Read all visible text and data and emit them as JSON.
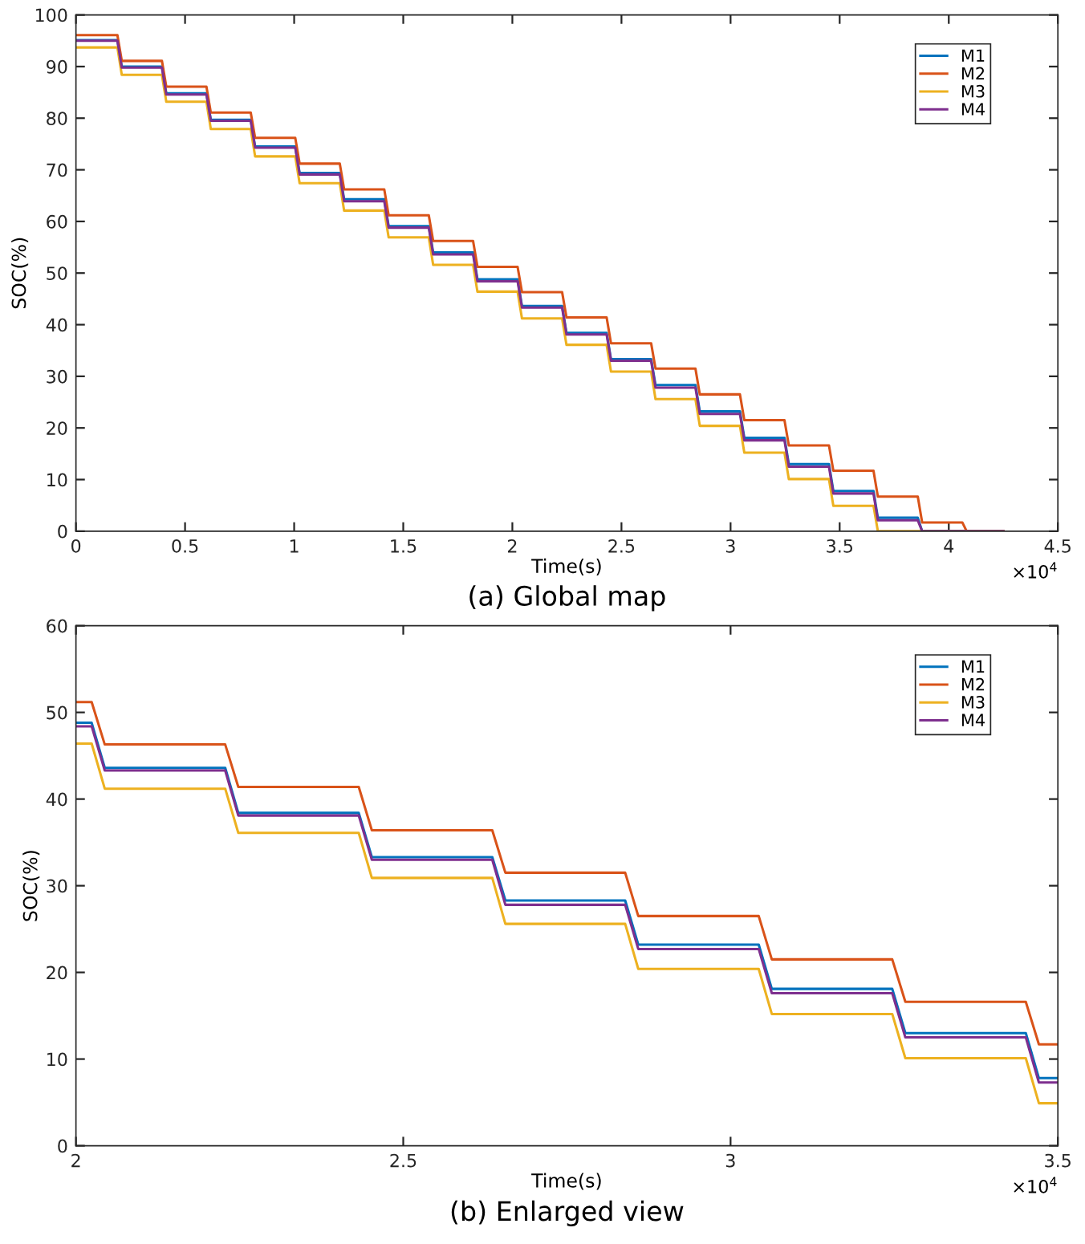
{
  "chart_data": [
    {
      "type": "line",
      "title": "(a) Global map",
      "xlabel": "Time(s)",
      "ylabel": "SOC(%)",
      "annotations": [
        "×10$^{4}$"
      ],
      "xlim": [
        0,
        4.5
      ],
      "ylim": [
        0,
        100
      ],
      "xticks": [
        0,
        0.5,
        1,
        1.5,
        2,
        2.5,
        3,
        3.5,
        4,
        4.5
      ],
      "yticks": [
        0,
        10,
        20,
        30,
        40,
        50,
        60,
        70,
        80,
        90,
        100
      ],
      "grid": false,
      "legend": "top right",
      "line_style": "solid",
      "marker": "none",
      "series": [
        {
          "name": "M1",
          "color": "#0072bd",
          "x": [
            0,
            0.19,
            0.21,
            0.394,
            0.414,
            0.598,
            0.618,
            0.801,
            0.821,
            1.005,
            1.025,
            1.209,
            1.229,
            1.413,
            1.433,
            1.617,
            1.637,
            1.82,
            1.84,
            2.024,
            2.044,
            2.228,
            2.248,
            2.432,
            2.452,
            2.636,
            2.656,
            2.839,
            2.859,
            3.043,
            3.063,
            3.247,
            3.267,
            3.451,
            3.471,
            3.655,
            3.675,
            3.858,
            3.878,
            4.25
          ],
          "values": [
            95.1,
            95.1,
            90.0,
            90.0,
            84.8,
            84.8,
            79.7,
            79.7,
            74.5,
            74.5,
            69.4,
            69.4,
            64.3,
            64.3,
            59.1,
            59.1,
            54.0,
            54.0,
            48.8,
            48.8,
            43.6,
            43.6,
            38.4,
            38.4,
            33.3,
            33.3,
            28.3,
            28.3,
            23.2,
            23.2,
            18.1,
            18.1,
            13.0,
            13.0,
            7.8,
            7.8,
            2.6,
            2.6,
            0,
            0
          ]
        },
        {
          "name": "M2",
          "color": "#d95319",
          "x": [
            0,
            0.19,
            0.21,
            0.394,
            0.414,
            0.598,
            0.618,
            0.801,
            0.821,
            1.005,
            1.025,
            1.209,
            1.229,
            1.413,
            1.433,
            1.617,
            1.637,
            1.82,
            1.84,
            2.024,
            2.044,
            2.228,
            2.248,
            2.432,
            2.452,
            2.636,
            2.656,
            2.839,
            2.859,
            3.043,
            3.063,
            3.247,
            3.267,
            3.451,
            3.471,
            3.655,
            3.675,
            3.858,
            3.878,
            4.062,
            4.082,
            4.25
          ],
          "values": [
            96.1,
            96.1,
            91.1,
            91.1,
            86.1,
            86.1,
            81.1,
            81.1,
            76.2,
            76.2,
            71.2,
            71.2,
            66.2,
            66.2,
            61.2,
            61.2,
            56.2,
            56.2,
            51.2,
            51.2,
            46.3,
            46.3,
            41.4,
            41.4,
            36.4,
            36.4,
            31.5,
            31.5,
            26.5,
            26.5,
            21.5,
            21.5,
            16.6,
            16.6,
            11.7,
            11.7,
            6.7,
            6.7,
            1.7,
            1.7,
            0,
            0
          ]
        },
        {
          "name": "M3",
          "color": "#edb120",
          "x": [
            0,
            0.19,
            0.21,
            0.394,
            0.414,
            0.598,
            0.618,
            0.801,
            0.821,
            1.005,
            1.025,
            1.209,
            1.229,
            1.413,
            1.433,
            1.617,
            1.637,
            1.82,
            1.84,
            2.024,
            2.044,
            2.228,
            2.248,
            2.432,
            2.452,
            2.636,
            2.656,
            2.839,
            2.859,
            3.043,
            3.063,
            3.247,
            3.267,
            3.451,
            3.471,
            3.655,
            3.675,
            4.25
          ],
          "values": [
            93.7,
            93.7,
            88.4,
            88.4,
            83.2,
            83.2,
            77.9,
            77.9,
            72.6,
            72.6,
            67.4,
            67.4,
            62.1,
            62.1,
            56.9,
            56.9,
            51.6,
            51.6,
            46.4,
            46.4,
            41.2,
            41.2,
            36.1,
            36.1,
            30.9,
            30.9,
            25.6,
            25.6,
            20.4,
            20.4,
            15.2,
            15.2,
            10.1,
            10.1,
            4.9,
            4.9,
            0,
            0
          ]
        },
        {
          "name": "M4",
          "color": "#7e2f8e",
          "x": [
            0,
            0.19,
            0.21,
            0.394,
            0.414,
            0.598,
            0.618,
            0.801,
            0.821,
            1.005,
            1.025,
            1.209,
            1.229,
            1.413,
            1.433,
            1.617,
            1.637,
            1.82,
            1.84,
            2.024,
            2.044,
            2.228,
            2.248,
            2.432,
            2.452,
            2.636,
            2.656,
            2.839,
            2.859,
            3.043,
            3.063,
            3.247,
            3.267,
            3.451,
            3.471,
            3.655,
            3.675,
            3.858,
            3.878,
            4.25
          ],
          "values": [
            95.0,
            95.0,
            89.8,
            89.8,
            84.6,
            84.6,
            79.5,
            79.5,
            74.3,
            74.3,
            69.1,
            69.1,
            63.9,
            63.9,
            58.8,
            58.8,
            53.6,
            53.6,
            48.4,
            48.4,
            43.3,
            43.3,
            38.1,
            38.1,
            33.0,
            33.0,
            27.8,
            27.8,
            22.7,
            22.7,
            17.6,
            17.6,
            12.5,
            12.5,
            7.3,
            7.3,
            2.1,
            2.1,
            0,
            0
          ]
        }
      ]
    },
    {
      "type": "line",
      "title": "(b) Enlarged view",
      "xlabel": "Time(s)",
      "ylabel": "SOC(%)",
      "annotations": [
        "×10$^{4}$"
      ],
      "xlim": [
        2,
        3.5
      ],
      "ylim": [
        0,
        60
      ],
      "xticks": [
        2,
        2.5,
        3,
        3.5
      ],
      "yticks": [
        0,
        10,
        20,
        30,
        40,
        50,
        60
      ],
      "grid": false,
      "legend": "top right",
      "line_style": "solid",
      "marker": "none",
      "series": [
        {
          "name": "M1",
          "color": "#0072bd",
          "x": [
            2,
            2.024,
            2.044,
            2.228,
            2.248,
            2.432,
            2.452,
            2.636,
            2.656,
            2.839,
            2.859,
            3.043,
            3.063,
            3.247,
            3.267,
            3.451,
            3.471,
            3.5
          ],
          "values": [
            48.8,
            48.8,
            43.6,
            43.6,
            38.4,
            38.4,
            33.3,
            33.3,
            28.3,
            28.3,
            23.2,
            23.2,
            18.1,
            18.1,
            13.0,
            13.0,
            7.8,
            7.8
          ]
        },
        {
          "name": "M2",
          "color": "#d95319",
          "x": [
            2,
            2.024,
            2.044,
            2.228,
            2.248,
            2.432,
            2.452,
            2.636,
            2.656,
            2.839,
            2.859,
            3.043,
            3.063,
            3.247,
            3.267,
            3.451,
            3.471,
            3.5
          ],
          "values": [
            51.2,
            51.2,
            46.3,
            46.3,
            41.4,
            41.4,
            36.4,
            36.4,
            31.5,
            31.5,
            26.5,
            26.5,
            21.5,
            21.5,
            16.6,
            16.6,
            11.7,
            11.7
          ]
        },
        {
          "name": "M3",
          "color": "#edb120",
          "x": [
            2,
            2.024,
            2.044,
            2.228,
            2.248,
            2.432,
            2.452,
            2.636,
            2.656,
            2.839,
            2.859,
            3.043,
            3.063,
            3.247,
            3.267,
            3.451,
            3.471,
            3.5
          ],
          "values": [
            46.4,
            46.4,
            41.2,
            41.2,
            36.1,
            36.1,
            30.9,
            30.9,
            25.6,
            25.6,
            20.4,
            20.4,
            15.2,
            15.2,
            10.1,
            10.1,
            4.9,
            4.9
          ]
        },
        {
          "name": "M4",
          "color": "#7e2f8e",
          "x": [
            2,
            2.024,
            2.044,
            2.228,
            2.248,
            2.432,
            2.452,
            2.636,
            2.656,
            2.839,
            2.859,
            3.043,
            3.063,
            3.247,
            3.267,
            3.451,
            3.471,
            3.5
          ],
          "values": [
            48.4,
            48.4,
            43.3,
            43.3,
            38.1,
            38.1,
            33.0,
            33.0,
            27.8,
            27.8,
            22.7,
            22.7,
            17.6,
            17.6,
            12.5,
            12.5,
            7.3,
            7.3
          ]
        }
      ]
    }
  ]
}
